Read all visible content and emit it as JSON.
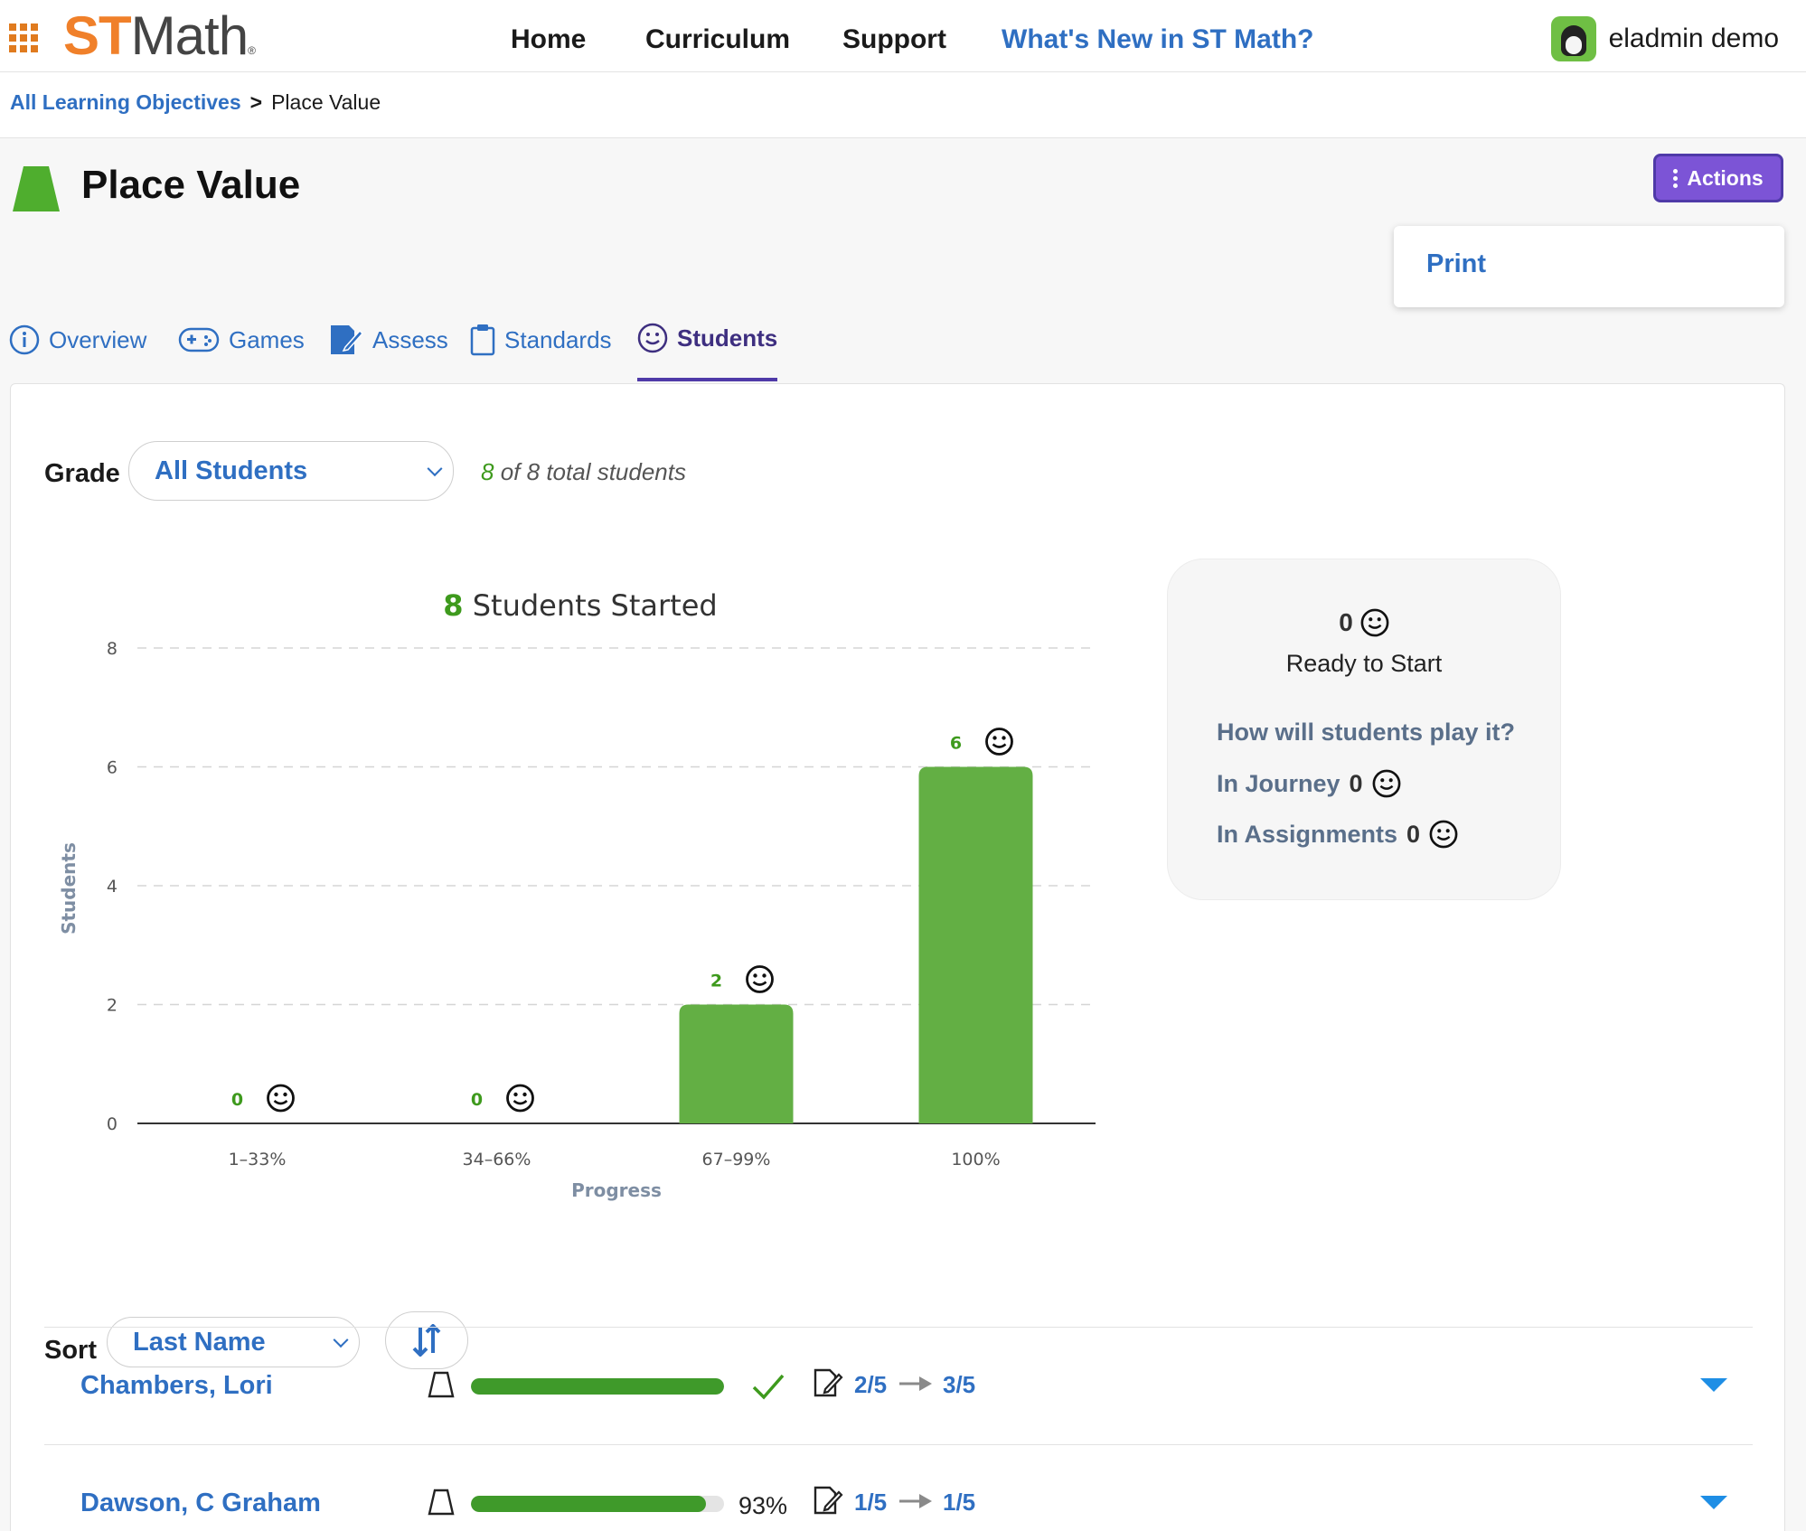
{
  "topnav": {
    "logo_st": "ST",
    "logo_math": "Math",
    "logo_mark": "®",
    "links": [
      "Home",
      "Curriculum",
      "Support",
      "What's New in ST Math?"
    ],
    "user": "eladmin demo"
  },
  "breadcrumb": {
    "parent": "All Learning Objectives",
    "separator": ">",
    "current": "Place Value"
  },
  "page": {
    "title": "Place Value",
    "actions_label": "Actions",
    "actions_menu": [
      "Print"
    ]
  },
  "tabs": [
    {
      "label": "Overview",
      "icon": "info-icon"
    },
    {
      "label": "Games",
      "icon": "gamepad-icon"
    },
    {
      "label": "Assess",
      "icon": "assess-icon"
    },
    {
      "label": "Standards",
      "icon": "clipboard-icon"
    },
    {
      "label": "Students",
      "icon": "smiley-icon",
      "active": true
    }
  ],
  "filters": {
    "grade_label": "Grade",
    "grade_value": "All Students",
    "total_count": "8",
    "total_of": "of",
    "total_all": "8",
    "total_suffix": "total students"
  },
  "chart_data": {
    "type": "bar",
    "title_count": "8",
    "title_text": "Students Started",
    "categories": [
      "1–33%",
      "34–66%",
      "67–99%",
      "100%"
    ],
    "values": [
      0,
      0,
      2,
      6
    ],
    "xlabel": "Progress",
    "ylabel": "Students",
    "ylim": [
      0,
      8
    ],
    "yticks": [
      0,
      2,
      4,
      6,
      8
    ],
    "grid": true,
    "bar_color": "#63af44",
    "label_color": "#3e9a1d"
  },
  "ready": {
    "count": "0",
    "label": "Ready to Start",
    "question": "How will students play it?",
    "journey_label": "In Journey",
    "journey_count": "0",
    "assign_label": "In Assignments",
    "assign_count": "0"
  },
  "sort": {
    "label": "Sort",
    "value": "Last Name"
  },
  "students": [
    {
      "name": "Chambers, Lori",
      "progress": 1.0,
      "complete": true,
      "pct": "",
      "from": "2/5",
      "to": "3/5"
    },
    {
      "name": "Dawson, C Graham",
      "progress": 0.93,
      "complete": false,
      "pct": "93%",
      "from": "1/5",
      "to": "1/5"
    }
  ],
  "colors": {
    "accent": "#2f6fc2",
    "actions_purple": "#7c54d6",
    "green": "#3f9a2a",
    "caret_blue": "#1e8ee5"
  }
}
